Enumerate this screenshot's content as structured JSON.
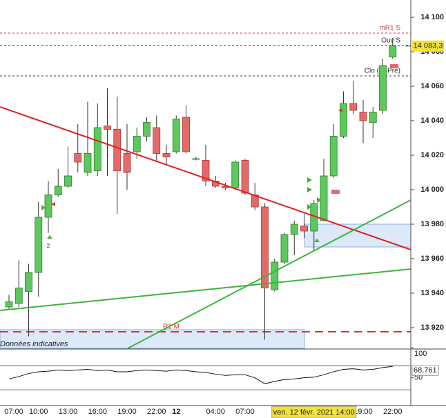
{
  "chart_data": {
    "type": "candlestick",
    "categories": [
      "07:00",
      null,
      null,
      "10:00",
      null,
      null,
      "13:00",
      null,
      null,
      "16:00",
      null,
      null,
      "19:00",
      null,
      null,
      "22:00",
      null,
      "12",
      null,
      null,
      null,
      "04:00",
      null,
      null,
      "07:00",
      null,
      null,
      null,
      null,
      null,
      null,
      null,
      null,
      null,
      null,
      null,
      "19:00",
      null,
      null,
      "22:00"
    ],
    "open": [
      13932,
      13934,
      13941,
      13952,
      13984,
      13997,
      14002,
      14021,
      14010,
      14011,
      14037,
      14035,
      14021,
      14022,
      14031,
      14036,
      14021,
      14022,
      14042,
      14018,
      14017,
      14005,
      14002,
      14001,
      14017,
      13997,
      13990,
      13942,
      13958,
      13974,
      13979,
      13976,
      13982,
      14008,
      14031,
      14050,
      14045,
      14039,
      14046,
      14077
    ],
    "high": [
      13939,
      13959,
      13957,
      13993,
      14005,
      14012,
      14025,
      14038,
      14051,
      14050,
      14059,
      14054,
      14038,
      14036,
      14042,
      14043,
      14026,
      14043,
      14049,
      14019,
      14026,
      14008,
      14004,
      14017,
      14018,
      14004,
      13992,
      13960,
      13975,
      13982,
      13986,
      13994,
      14018,
      14038,
      14057,
      14063,
      14052,
      14048,
      14076,
      14088
    ],
    "low": [
      13931,
      13932,
      13915,
      13938,
      13975,
      13996,
      14001,
      14010,
      14008,
      14008,
      14008,
      13986,
      14000,
      14018,
      14028,
      14017,
      14014,
      14021,
      14021,
      14017,
      14002,
      14001,
      14000,
      14000,
      13997,
      13988,
      13913,
      13941,
      13957,
      13962,
      13972,
      13965,
      13982,
      14007,
      14030,
      14044,
      14027,
      14030,
      14044,
      14076
    ],
    "close": [
      13935,
      13943,
      13952,
      13984,
      13997,
      14002,
      14008,
      14016,
      14021,
      14036,
      14035,
      14011,
      14010,
      14031,
      14039,
      14021,
      14019,
      14041,
      14022,
      14018,
      14005,
      14002,
      14001,
      14016,
      13998,
      13990,
      13943,
      13958,
      13974,
      13980,
      13976,
      13992,
      14008,
      14031,
      14050,
      14046,
      14040,
      14045,
      14072,
      14083.3
    ],
    "up_color": "#5cc95c",
    "down_color": "#e46a6a",
    "ylim": [
      13908,
      14110
    ],
    "yticks": [
      {
        "value": 13920,
        "label": "13 920"
      },
      {
        "value": 13940,
        "label": "13 940"
      },
      {
        "value": 13960,
        "label": "13 960"
      },
      {
        "value": 13980,
        "label": "13 980"
      },
      {
        "value": 14000,
        "label": "14 000"
      },
      {
        "value": 14020,
        "label": "14 020"
      },
      {
        "value": 14040,
        "label": "14 040"
      },
      {
        "value": 14060,
        "label": "14 060"
      },
      {
        "value": 14080,
        "label": "14 080"
      },
      {
        "value": 14100,
        "label": "14 100"
      }
    ],
    "current_price": {
      "value": 14083.3,
      "label": "14 083,3"
    },
    "levels": [
      {
        "name": "mR1 S",
        "value": 14090.8,
        "color": "#e03030"
      },
      {
        "name": "Ouv S",
        "value": 14083.6,
        "color": "#333333"
      },
      {
        "name": "Clo (S, Pré)",
        "value": 14066,
        "color": "#333333"
      },
      {
        "name": "R1 M",
        "value": 13917.6,
        "color": "#e03030"
      }
    ],
    "note": "Données indicatives",
    "marker_label": "2",
    "crosshair_label": "ven. 12 févr. 2021 14:00",
    "oscillator": {
      "values": [
        48,
        52,
        57,
        60,
        61,
        63,
        62,
        63,
        64,
        62,
        63,
        60,
        60,
        62,
        63,
        62,
        61,
        63,
        62,
        60,
        59,
        56,
        54,
        55,
        55,
        50,
        40,
        44,
        47,
        48,
        50,
        51,
        55,
        60,
        64,
        65,
        63,
        64,
        67,
        68.761
      ],
      "value_label": "68,761",
      "ylim": [
        5,
        100
      ],
      "yticks": [
        100,
        50
      ],
      "levels": [
        70,
        30
      ],
      "color": "#111111"
    }
  }
}
